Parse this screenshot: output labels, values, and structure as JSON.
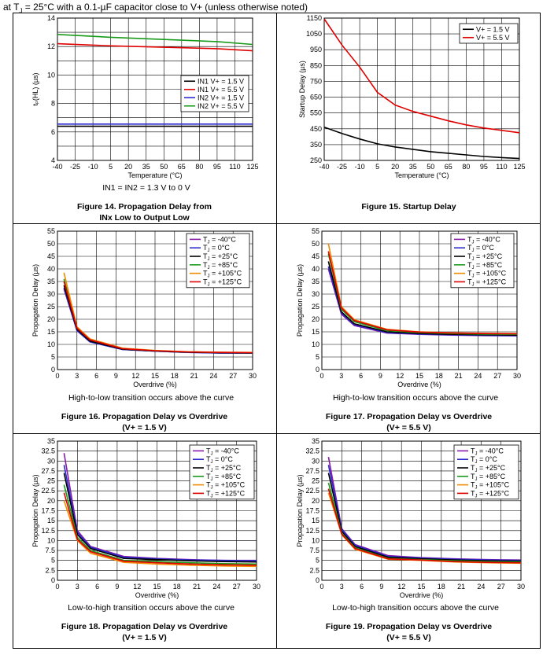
{
  "header": {
    "prefix": "at T",
    "sub": "J",
    "suffix": " = 25°C with a 0.1-µF capacitor close to V+ (unless otherwise noted)"
  },
  "notes": {
    "fig14": "IN1 = IN2 = 1.3 V to 0 V",
    "fig16": "High-to-low transition occurs above the curve",
    "fig17": "High-to-low transition occurs above the curve",
    "fig18": "Low-to-high transition occurs above the curve",
    "fig19": "Low-to-high transition occurs above the curve"
  },
  "captions": {
    "fig14": [
      "Figure 14. Propagation Delay from",
      "INx Low to Output Low"
    ],
    "fig15": [
      "Figure 15. Startup Delay"
    ],
    "fig16": [
      "Figure 16. Propagation Delay vs Overdrive",
      "(V+ = 1.5 V)"
    ],
    "fig17": [
      "Figure 17. Propagation Delay vs Overdrive",
      "(V+ = 5.5 V)"
    ],
    "fig18": [
      "Figure 18. Propagation Delay vs Overdrive",
      "(V+ = 1.5 V)"
    ],
    "fig19": [
      "Figure 19. Propagation Delay vs Overdrive",
      "(V+ = 5.5 V)"
    ]
  },
  "chart_data": [
    {
      "id": "fig14",
      "type": "line",
      "xlabel": "Temperature (°C)",
      "ylabel": "tₚ(HL) (µs)",
      "xlim": [
        -40,
        125
      ],
      "ylim": [
        4,
        14
      ],
      "xticks": [
        -40,
        -25,
        -10,
        5,
        20,
        35,
        50,
        65,
        80,
        95,
        110,
        125
      ],
      "yticks": [
        4,
        6,
        8,
        10,
        12,
        14
      ],
      "legend_position": "center-right",
      "series": [
        {
          "name": "IN1 V+ = 1.5 V",
          "color": "#000000",
          "x": [
            -40,
            125
          ],
          "y": [
            6.4,
            6.4
          ]
        },
        {
          "name": "IN1 V+ = 5.5 V",
          "color": "#e00000",
          "x": [
            -40,
            5,
            50,
            95,
            125
          ],
          "y": [
            12.2,
            12.05,
            11.95,
            11.85,
            11.7
          ]
        },
        {
          "name": "IN2 V+ = 1.5 V",
          "color": "#2a2ad0",
          "x": [
            -40,
            125
          ],
          "y": [
            6.55,
            6.55
          ]
        },
        {
          "name": "IN2 V+ = 5.5 V",
          "color": "#1a9a1a",
          "x": [
            -40,
            5,
            50,
            95,
            125
          ],
          "y": [
            12.85,
            12.65,
            12.5,
            12.35,
            12.15
          ]
        }
      ]
    },
    {
      "id": "fig15",
      "type": "line",
      "xlabel": "Temperature (°C)",
      "ylabel": "Startup Delay (µs)",
      "xlim": [
        -40,
        125
      ],
      "ylim": [
        250,
        1150
      ],
      "xticks": [
        -40,
        -25,
        -10,
        5,
        20,
        35,
        50,
        65,
        80,
        95,
        110,
        125
      ],
      "yticks": [
        250,
        350,
        450,
        550,
        650,
        750,
        850,
        950,
        1050,
        1150
      ],
      "legend_position": "top-right",
      "series": [
        {
          "name": "V+ = 1.5 V",
          "color": "#000000",
          "x": [
            -40,
            -25,
            -10,
            5,
            20,
            35,
            50,
            65,
            80,
            95,
            110,
            125
          ],
          "y": [
            460,
            420,
            385,
            355,
            335,
            320,
            305,
            295,
            285,
            275,
            268,
            262
          ]
        },
        {
          "name": "V+ = 5.5 V",
          "color": "#e00000",
          "x": [
            -40,
            -25,
            -10,
            5,
            20,
            35,
            50,
            65,
            80,
            95,
            110,
            125
          ],
          "y": [
            1145,
            980,
            840,
            680,
            600,
            560,
            530,
            500,
            475,
            455,
            440,
            425
          ]
        }
      ]
    },
    {
      "id": "fig16",
      "type": "line",
      "xlabel": "Overdrive (%)",
      "ylabel": "Propagation Delay (µs)",
      "xlim": [
        0,
        30
      ],
      "ylim": [
        0,
        55
      ],
      "xticks": [
        0,
        3,
        6,
        9,
        12,
        15,
        18,
        21,
        24,
        27,
        30
      ],
      "yticks": [
        0,
        5,
        10,
        15,
        20,
        25,
        30,
        35,
        40,
        45,
        50,
        55
      ],
      "legend_position": "top-right",
      "x": [
        1,
        3,
        5,
        10,
        15,
        20,
        25,
        30
      ],
      "series": [
        {
          "name": "T_J = -40°C",
          "color": "#8a1aa8",
          "values": [
            32,
            15.5,
            11,
            8,
            7.3,
            6.8,
            6.6,
            6.5
          ]
        },
        {
          "name": "T_J = 0°C",
          "color": "#2a2ad0",
          "values": [
            32.5,
            15.5,
            11,
            8,
            7.3,
            6.8,
            6.6,
            6.5
          ]
        },
        {
          "name": "T_J = +25°C",
          "color": "#000000",
          "values": [
            33.5,
            16,
            11.3,
            8.1,
            7.4,
            6.9,
            6.7,
            6.6
          ]
        },
        {
          "name": "T_J = +85°C",
          "color": "#1a9a1a",
          "values": [
            36,
            16.5,
            11.8,
            8.3,
            7.5,
            7,
            6.8,
            6.7
          ]
        },
        {
          "name": "T_J = +105°C",
          "color": "#f08a00",
          "values": [
            38.5,
            17,
            12.2,
            8.5,
            7.6,
            7.1,
            6.9,
            6.8
          ]
        },
        {
          "name": "T_J = +125°C",
          "color": "#e00000",
          "values": [
            35,
            16.5,
            11.8,
            8.3,
            7.5,
            7,
            6.8,
            6.7
          ]
        }
      ]
    },
    {
      "id": "fig17",
      "type": "line",
      "xlabel": "Overdrive (%)",
      "ylabel": "Propagation Delay (µs)",
      "xlim": [
        0,
        30
      ],
      "ylim": [
        0,
        55
      ],
      "xticks": [
        0,
        3,
        6,
        9,
        12,
        15,
        18,
        21,
        24,
        27,
        30
      ],
      "yticks": [
        0,
        5,
        10,
        15,
        20,
        25,
        30,
        35,
        40,
        45,
        50,
        55
      ],
      "legend_position": "top-right",
      "x": [
        1,
        3,
        5,
        10,
        15,
        20,
        25,
        30
      ],
      "series": [
        {
          "name": "T_J = -40°C",
          "color": "#8a1aa8",
          "values": [
            40,
            22,
            17.5,
            14.5,
            14,
            13.7,
            13.5,
            13.4
          ]
        },
        {
          "name": "T_J = 0°C",
          "color": "#2a2ad0",
          "values": [
            41,
            22.5,
            17.8,
            14.7,
            14.1,
            13.8,
            13.6,
            13.5
          ]
        },
        {
          "name": "T_J = +25°C",
          "color": "#000000",
          "values": [
            43,
            23,
            18.2,
            15,
            14.3,
            14,
            13.8,
            13.7
          ]
        },
        {
          "name": "T_J = +85°C",
          "color": "#1a9a1a",
          "values": [
            46,
            24,
            19,
            15.5,
            14.7,
            14.3,
            14.1,
            14
          ]
        },
        {
          "name": "T_J = +105°C",
          "color": "#f08a00",
          "values": [
            50,
            25,
            19.8,
            16,
            15,
            14.6,
            14.4,
            14.3
          ]
        },
        {
          "name": "T_J = +125°C",
          "color": "#e00000",
          "values": [
            47,
            24.5,
            19.5,
            15.8,
            14.9,
            14.5,
            14.3,
            14.2
          ]
        }
      ]
    },
    {
      "id": "fig18",
      "type": "line",
      "xlabel": "Overdrive (%)",
      "ylabel": "Propagation Delay (µs)",
      "xlim": [
        0,
        30
      ],
      "ylim": [
        0,
        35
      ],
      "xticks": [
        0,
        3,
        6,
        9,
        12,
        15,
        18,
        21,
        24,
        27,
        30
      ],
      "yticks": [
        0,
        2.5,
        5,
        7.5,
        10,
        12.5,
        15,
        17.5,
        20,
        22.5,
        25,
        27.5,
        30,
        32.5,
        35
      ],
      "legend_position": "top-right",
      "x": [
        1,
        3,
        5,
        10,
        15,
        20,
        25,
        30
      ],
      "series": [
        {
          "name": "T_J = -40°C",
          "color": "#8a1aa8",
          "values": [
            32,
            12.5,
            8.5,
            6,
            5.5,
            5.2,
            5,
            5
          ]
        },
        {
          "name": "T_J = 0°C",
          "color": "#2a2ad0",
          "values": [
            29,
            12,
            8.3,
            5.8,
            5.4,
            5.1,
            5,
            4.9
          ]
        },
        {
          "name": "T_J = +25°C",
          "color": "#000000",
          "values": [
            27,
            11.5,
            8,
            5.5,
            5.2,
            4.9,
            4.7,
            4.6
          ]
        },
        {
          "name": "T_J = +85°C",
          "color": "#1a9a1a",
          "values": [
            24,
            10.8,
            7.5,
            5,
            4.7,
            4.4,
            4.2,
            4.1
          ]
        },
        {
          "name": "T_J = +105°C",
          "color": "#f08a00",
          "values": [
            20,
            10,
            6.8,
            4.5,
            4.1,
            3.8,
            3.6,
            3.5
          ]
        },
        {
          "name": "T_J = +125°C",
          "color": "#e00000",
          "values": [
            22,
            10.3,
            7.2,
            4.8,
            4.4,
            4.1,
            3.9,
            3.8
          ]
        }
      ]
    },
    {
      "id": "fig19",
      "type": "line",
      "xlabel": "Overdrive (%)",
      "ylabel": "Propagation Delay (µs)",
      "xlim": [
        0,
        30
      ],
      "ylim": [
        0,
        35
      ],
      "xticks": [
        0,
        3,
        6,
        9,
        12,
        15,
        18,
        21,
        24,
        27,
        30
      ],
      "yticks": [
        0,
        2.5,
        5,
        7.5,
        10,
        12.5,
        15,
        17.5,
        20,
        22.5,
        25,
        27.5,
        30,
        32.5,
        35
      ],
      "legend_position": "top-right",
      "x": [
        1,
        3,
        5,
        10,
        15,
        20,
        25,
        30
      ],
      "series": [
        {
          "name": "T_J = -40°C",
          "color": "#8a1aa8",
          "values": [
            31,
            13,
            9,
            6.2,
            5.7,
            5.4,
            5.2,
            5.1
          ]
        },
        {
          "name": "T_J = 0°C",
          "color": "#2a2ad0",
          "values": [
            29,
            12.8,
            8.8,
            6,
            5.6,
            5.3,
            5.1,
            5
          ]
        },
        {
          "name": "T_J = +25°C",
          "color": "#000000",
          "values": [
            27,
            12.3,
            8.5,
            5.8,
            5.4,
            5.1,
            4.9,
            4.8
          ]
        },
        {
          "name": "T_J = +85°C",
          "color": "#1a9a1a",
          "values": [
            24.5,
            11.8,
            8.2,
            5.5,
            5.2,
            4.9,
            4.7,
            4.6
          ]
        },
        {
          "name": "T_J = +105°C",
          "color": "#f08a00",
          "values": [
            22,
            11.5,
            7.8,
            5.3,
            5,
            4.6,
            4.4,
            4.3
          ]
        },
        {
          "name": "T_J = +125°C",
          "color": "#e00000",
          "values": [
            23,
            11.6,
            8,
            5.4,
            5.1,
            4.7,
            4.5,
            4.4
          ]
        }
      ]
    }
  ]
}
